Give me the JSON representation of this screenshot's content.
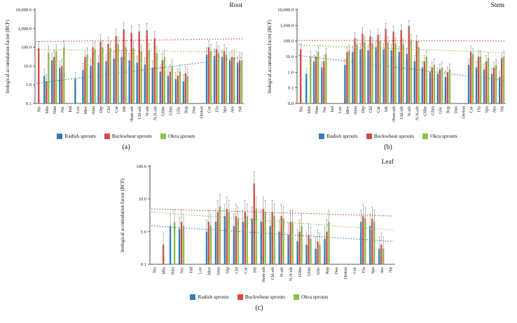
{
  "charts": [
    {
      "id": "root",
      "title": "Root",
      "caption": "(a)",
      "ylabel": "biological accumulation factor (BCF)",
      "yticks": [
        "10,000.0",
        "1,000.0",
        "100.0",
        "10.0",
        "1.0",
        "0.1"
      ],
      "log_min": -1,
      "log_max": 4,
      "categories": [
        "Nis",
        "Min",
        "Nim",
        "Nic",
        "Ind",
        "Lov",
        "Mev",
        "Ama",
        "Dip",
        "Chl",
        "Car",
        "Sib",
        "Hom-sib",
        "Chl-sib",
        "N-sib",
        "N,N-sib",
        "Glibe",
        "Glim",
        "Glic",
        "Rep",
        "Dan",
        "Oreton",
        "Cor",
        "Flu",
        "Spa",
        "Ato",
        "Nit"
      ],
      "series": [
        {
          "name": "Radish sprouts",
          "color": "#2e7fbd",
          "values": [
            0,
            3,
            20,
            8,
            0,
            2,
            6,
            10,
            15,
            18,
            25,
            30,
            20,
            15,
            12,
            8,
            5,
            3,
            2,
            1.5,
            0,
            0,
            40,
            35,
            30,
            20,
            15
          ],
          "trend": [
            1.2,
            28
          ]
        },
        {
          "name": "Buckwheat sprouts",
          "color": "#d24a43",
          "values": [
            90,
            1.5,
            30,
            10,
            0,
            0,
            30,
            100,
            200,
            150,
            400,
            900,
            600,
            700,
            800,
            300,
            20,
            5,
            3,
            4,
            0,
            0,
            100,
            80,
            60,
            30,
            20
          ],
          "trend": [
            200,
            280
          ]
        },
        {
          "name": "Okra sprouts",
          "color": "#8fbf4b",
          "values": [
            0,
            50,
            60,
            100,
            0,
            0,
            40,
            80,
            100,
            90,
            150,
            100,
            90,
            60,
            70,
            50,
            30,
            10,
            5,
            3,
            0,
            0,
            60,
            50,
            40,
            30,
            20
          ],
          "trend": [
            75,
            55
          ]
        }
      ]
    },
    {
      "id": "stem",
      "title": "Stem",
      "caption": "(b)",
      "ylabel": "biological accumulation factor (BCF)",
      "yticks": [
        "10,000.0",
        "1,000.0",
        "100.0",
        "10.0",
        "1.0",
        "0.1",
        "0.0"
      ],
      "log_min": -2,
      "log_max": 4,
      "categories": [
        "Nis",
        "Min",
        "Nim",
        "Nic",
        "Ind",
        "Lov",
        "Mev",
        "Ama",
        "Dip",
        "Chl",
        "Car",
        "Sib",
        "Hom-sib",
        "Chl-sib",
        "N-sib",
        "N,N-sib",
        "Glibe",
        "Glim",
        "Glic",
        "Rep",
        "Dan",
        "Oreton",
        "Cor",
        "Flu",
        "Spa",
        "Ato",
        "Nit"
      ],
      "series": [
        {
          "name": "Radish sprouts",
          "color": "#2e7fbd",
          "values": [
            0,
            0.8,
            5,
            2,
            0,
            0,
            3,
            20,
            30,
            25,
            40,
            30,
            25,
            20,
            15,
            5,
            2,
            1,
            0.8,
            0.5,
            0,
            0,
            3,
            2,
            1.5,
            0.8,
            0.5
          ],
          "trend": [
            12,
            0.3
          ]
        },
        {
          "name": "Buckwheat sprouts",
          "color": "#d24a43",
          "values": [
            30,
            0,
            10,
            5,
            0,
            0,
            20,
            150,
            300,
            200,
            250,
            600,
            400,
            500,
            900,
            100,
            5,
            2,
            1.5,
            1,
            0,
            0,
            20,
            10,
            5,
            2,
            8
          ],
          "trend": [
            110,
            100
          ]
        },
        {
          "name": "Okra sprouts",
          "color": "#8fbf4b",
          "values": [
            0,
            10,
            20,
            15,
            0,
            0,
            25,
            60,
            80,
            70,
            100,
            80,
            70,
            60,
            120,
            40,
            10,
            3,
            2,
            1.5,
            0,
            0,
            15,
            10,
            8,
            3,
            10
          ],
          "trend": [
            55,
            18
          ]
        }
      ]
    },
    {
      "id": "leaf",
      "title": "Leaf",
      "caption": "(c)",
      "ylabel": "biological accumulation factor (BCF)",
      "yticks": [
        "100.0",
        "10.0",
        "1.0",
        "0.1"
      ],
      "log_min": -1,
      "log_max": 2,
      "categories": [
        "Nis",
        "Min",
        "Nim",
        "Nic",
        "Ind",
        "Lov",
        "Mev",
        "Ama",
        "Dip",
        "Chl",
        "Car",
        "Sib",
        "Hom-sib",
        "Chl-sib",
        "N-sib",
        "N,N-sib",
        "Glibe",
        "Glim",
        "Glic",
        "Rep",
        "Dan",
        "Oreton",
        "Cor",
        "Flu",
        "Spa",
        "Ato",
        "Nit"
      ],
      "series": [
        {
          "name": "Radish sprouts",
          "color": "#2e7fbd",
          "values": [
            0,
            0,
            1.5,
            1.2,
            0,
            0,
            1,
            2,
            3,
            1.5,
            2,
            2.5,
            2,
            1.5,
            1,
            0.8,
            0.5,
            0.4,
            0.3,
            0.6,
            0,
            0,
            0,
            2,
            1.5,
            0.3,
            0
          ],
          "trend": [
            1.5,
            0.5
          ]
        },
        {
          "name": "Buckwheat sprouts",
          "color": "#d24a43",
          "values": [
            0,
            0.4,
            0,
            2,
            0,
            0,
            2,
            4,
            5,
            3,
            4,
            30,
            5,
            4,
            3,
            2,
            1,
            0.8,
            0.5,
            1,
            0,
            0,
            0,
            3,
            2.5,
            0.4,
            0
          ],
          "trend": [
            5,
            3
          ]
        },
        {
          "name": "Okra sprouts",
          "color": "#8fbf4b",
          "values": [
            0,
            0,
            2,
            1.5,
            0,
            0,
            1.5,
            6,
            4,
            2.5,
            3,
            5,
            4,
            3,
            2.5,
            2,
            1.5,
            0.6,
            0.4,
            2,
            0,
            0,
            0,
            2.5,
            2,
            0.3,
            0
          ],
          "trend": [
            4,
            1.1
          ]
        }
      ]
    }
  ],
  "chart_data": [
    {
      "type": "bar",
      "title": "Root",
      "ylabel": "biological accumulation factor (BCF)",
      "y_scale": "log",
      "ylim": [
        0.1,
        10000
      ],
      "legend_position": "bottom",
      "grid": false,
      "categories": [
        "Nis",
        "Min",
        "Nim",
        "Nic",
        "Ind",
        "Lov",
        "Mev",
        "Ama",
        "Dip",
        "Chl",
        "Car",
        "Sib",
        "Hom-sib",
        "Chl-sib",
        "N-sib",
        "N,N-sib",
        "Glibe",
        "Glim",
        "Glic",
        "Rep",
        "Dan",
        "Oreton",
        "Cor",
        "Flu",
        "Spa",
        "Ato",
        "Nit"
      ],
      "series": [
        {
          "name": "Radish sprouts",
          "values": [
            0,
            3,
            20,
            8,
            0,
            2,
            6,
            10,
            15,
            18,
            25,
            30,
            20,
            15,
            12,
            8,
            5,
            3,
            2,
            1.5,
            0,
            0,
            40,
            35,
            30,
            20,
            15
          ]
        },
        {
          "name": "Buckwheat sprouts",
          "values": [
            90,
            1.5,
            30,
            10,
            0,
            0,
            30,
            100,
            200,
            150,
            400,
            900,
            600,
            700,
            800,
            300,
            20,
            5,
            3,
            4,
            0,
            0,
            100,
            80,
            60,
            30,
            20
          ]
        },
        {
          "name": "Okra sprouts",
          "values": [
            0,
            50,
            60,
            100,
            0,
            0,
            40,
            80,
            100,
            90,
            150,
            100,
            90,
            60,
            70,
            50,
            30,
            10,
            5,
            3,
            0,
            0,
            60,
            50,
            40,
            30,
            20
          ]
        }
      ]
    },
    {
      "type": "bar",
      "title": "Stem",
      "ylabel": "biological accumulation factor (BCF)",
      "y_scale": "log",
      "ylim": [
        0.01,
        10000
      ],
      "legend_position": "bottom",
      "grid": false,
      "categories": [
        "Nis",
        "Min",
        "Nim",
        "Nic",
        "Ind",
        "Lov",
        "Mev",
        "Ama",
        "Dip",
        "Chl",
        "Car",
        "Sib",
        "Hom-sib",
        "Chl-sib",
        "N-sib",
        "N,N-sib",
        "Glibe",
        "Glim",
        "Glic",
        "Rep",
        "Dan",
        "Oreton",
        "Cor",
        "Flu",
        "Spa",
        "Ato",
        "Nit"
      ],
      "series": [
        {
          "name": "Radish sprouts",
          "values": [
            0,
            0.8,
            5,
            2,
            0,
            0,
            3,
            20,
            30,
            25,
            40,
            30,
            25,
            20,
            15,
            5,
            2,
            1,
            0.8,
            0.5,
            0,
            0,
            3,
            2,
            1.5,
            0.8,
            0.5
          ]
        },
        {
          "name": "Buckwheat sprouts",
          "values": [
            30,
            0,
            10,
            5,
            0,
            0,
            20,
            150,
            300,
            200,
            250,
            600,
            400,
            500,
            900,
            100,
            5,
            2,
            1.5,
            1,
            0,
            0,
            20,
            10,
            5,
            2,
            8
          ]
        },
        {
          "name": "Okra sprouts",
          "values": [
            0,
            10,
            20,
            15,
            0,
            0,
            25,
            60,
            80,
            70,
            100,
            80,
            70,
            60,
            120,
            40,
            10,
            3,
            2,
            1.5,
            0,
            0,
            15,
            10,
            8,
            3,
            10
          ]
        }
      ]
    },
    {
      "type": "bar",
      "title": "Leaf",
      "ylabel": "biological accumulation factor (BCF)",
      "y_scale": "log",
      "ylim": [
        0.1,
        100
      ],
      "legend_position": "bottom",
      "grid": false,
      "categories": [
        "Nis",
        "Min",
        "Nim",
        "Nic",
        "Ind",
        "Lov",
        "Mev",
        "Ama",
        "Dip",
        "Chl",
        "Car",
        "Sib",
        "Hom-sib",
        "Chl-sib",
        "N-sib",
        "N,N-sib",
        "Glibe",
        "Glim",
        "Glic",
        "Rep",
        "Dan",
        "Oreton",
        "Cor",
        "Flu",
        "Spa",
        "Ato",
        "Nit"
      ],
      "series": [
        {
          "name": "Radish sprouts",
          "values": [
            0,
            0,
            1.5,
            1.2,
            0,
            0,
            1,
            2,
            3,
            1.5,
            2,
            2.5,
            2,
            1.5,
            1,
            0.8,
            0.5,
            0.4,
            0.3,
            0.6,
            0,
            0,
            0,
            2,
            1.5,
            0.3,
            0
          ]
        },
        {
          "name": "Buckwheat sprouts",
          "values": [
            0,
            0.4,
            0,
            2,
            0,
            0,
            2,
            4,
            5,
            3,
            4,
            30,
            5,
            4,
            3,
            2,
            1,
            0.8,
            0.5,
            1,
            0,
            0,
            0,
            3,
            2.5,
            0.4,
            0
          ]
        },
        {
          "name": "Okra sprouts",
          "values": [
            0,
            0,
            2,
            1.5,
            0,
            0,
            1.5,
            6,
            4,
            2.5,
            3,
            5,
            4,
            3,
            2.5,
            2,
            1.5,
            0.6,
            0.4,
            2,
            0,
            0,
            0,
            2.5,
            2,
            0.3,
            0
          ]
        }
      ]
    }
  ]
}
